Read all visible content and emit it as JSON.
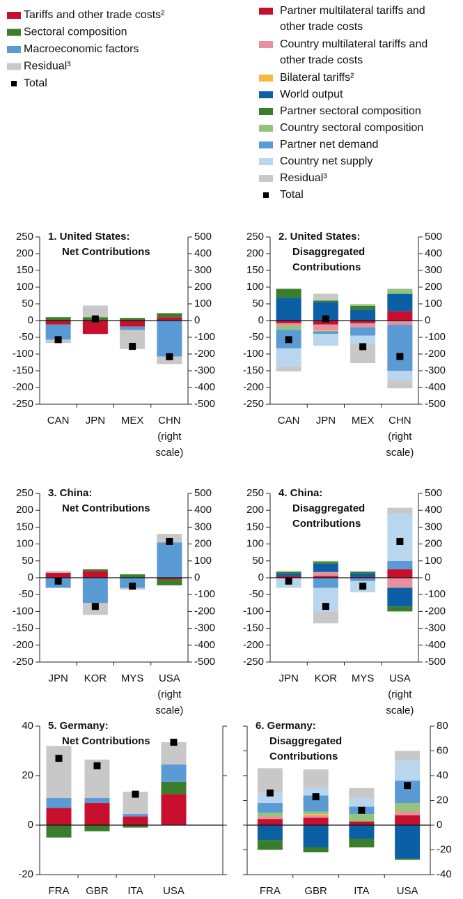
{
  "chart_data": [
    {
      "type": "bar",
      "stacked": true,
      "title": [
        "1. United States:",
        "Net Contributions"
      ],
      "categories": [
        "CAN",
        "JPN",
        "MEX",
        "CHN (right scale)"
      ],
      "ylim": [
        -250,
        250
      ],
      "yticks": [
        250,
        200,
        150,
        100,
        50,
        0,
        -50,
        -100,
        -150,
        -200,
        -250
      ],
      "y2lim": [
        -500,
        500
      ],
      "y2ticks": [
        500,
        400,
        300,
        200,
        100,
        0,
        -100,
        -200,
        -300,
        -400,
        -500
      ],
      "y2_categories": [
        3
      ],
      "series": [
        {
          "name": "Tariffs and other trade costs²",
          "color": "#c8102e",
          "values": [
            -12,
            -40,
            -18,
            20
          ]
        },
        {
          "name": "Sectoral composition",
          "color": "#3a7d2c",
          "values": [
            10,
            10,
            8,
            24
          ]
        },
        {
          "name": "Macroeconomic factors",
          "color": "#5b9bd5",
          "values": [
            -45,
            0,
            -10,
            -215
          ]
        },
        {
          "name": "Residual³",
          "color": "#c8c8c8",
          "values": [
            -10,
            35,
            -57,
            -45
          ]
        },
        {
          "name": "Total",
          "color": "#000000",
          "marker": "square",
          "values": [
            -57,
            5,
            -77,
            -216
          ]
        }
      ]
    },
    {
      "type": "bar",
      "stacked": true,
      "title": [
        "2. United States:",
        "Disaggregated",
        "Contributions"
      ],
      "categories": [
        "CAN",
        "JPN",
        "MEX",
        "CHN (right scale)"
      ],
      "ylim": [
        -250,
        250
      ],
      "yticks": [
        250,
        200,
        150,
        100,
        50,
        0,
        -50,
        -100,
        -150,
        -200,
        -250
      ],
      "y2lim": [
        -500,
        500
      ],
      "y2ticks": [
        500,
        400,
        300,
        200,
        100,
        0,
        -100,
        -200,
        -300,
        -400,
        -500
      ],
      "y2_categories": [
        3
      ],
      "series": [
        {
          "name": "Partner multilateral tariffs and other trade costs",
          "color": "#c8102e",
          "values": [
            -8,
            -12,
            -8,
            55
          ]
        },
        {
          "name": "Country multilateral tariffs and other trade costs",
          "color": "#e8919c",
          "values": [
            -8,
            -17,
            -12,
            -25
          ]
        },
        {
          "name": "Bilateral tariffs²",
          "color": "#f5b942",
          "values": [
            0,
            -3,
            0,
            0
          ]
        },
        {
          "name": "World output",
          "color": "#0b5fa5",
          "values": [
            68,
            55,
            32,
            105
          ]
        },
        {
          "name": "Partner sectoral composition",
          "color": "#3a7d2c",
          "values": [
            27,
            5,
            12,
            0
          ]
        },
        {
          "name": "Country sectoral composition",
          "color": "#93c47d",
          "values": [
            -12,
            0,
            5,
            30
          ]
        },
        {
          "name": "Partner net demand",
          "color": "#5b9bd5",
          "values": [
            -55,
            -8,
            -25,
            -275
          ]
        },
        {
          "name": "Country net supply",
          "color": "#b9d6ef",
          "values": [
            -55,
            -35,
            -25,
            -55
          ]
        },
        {
          "name": "Residual³",
          "color": "#c8c8c8",
          "values": [
            -14,
            20,
            -57,
            -50
          ]
        },
        {
          "name": "Total",
          "color": "#000000",
          "marker": "square",
          "values": [
            -57,
            5,
            -78,
            -215
          ]
        }
      ]
    },
    {
      "type": "bar",
      "stacked": true,
      "title": [
        "3. China:",
        "Net Contributions"
      ],
      "categories": [
        "JPN",
        "KOR",
        "MYS",
        "USA (right scale)"
      ],
      "ylim": [
        -250,
        250
      ],
      "yticks": [
        250,
        200,
        150,
        100,
        50,
        0,
        -50,
        -100,
        -150,
        -200,
        -250
      ],
      "y2lim": [
        -500,
        500
      ],
      "y2ticks": [
        500,
        400,
        300,
        200,
        100,
        0,
        -100,
        -200,
        -300,
        -400,
        -500
      ],
      "y2_categories": [
        3
      ],
      "series": [
        {
          "name": "Tariffs and other trade costs²",
          "color": "#c8102e",
          "values": [
            15,
            20,
            0,
            -10
          ]
        },
        {
          "name": "Sectoral composition",
          "color": "#3a7d2c",
          "values": [
            0,
            5,
            10,
            -35
          ]
        },
        {
          "name": "Macroeconomic factors",
          "color": "#5b9bd5",
          "values": [
            -30,
            -75,
            -30,
            210
          ]
        },
        {
          "name": "Residual³",
          "color": "#c8c8c8",
          "values": [
            5,
            -35,
            -5,
            50
          ]
        },
        {
          "name": "Total",
          "color": "#000000",
          "marker": "square",
          "values": [
            -10,
            -85,
            -25,
            215
          ]
        }
      ]
    },
    {
      "type": "bar",
      "stacked": true,
      "title": [
        "4. China:",
        "Disaggregated",
        "Contributions"
      ],
      "categories": [
        "JPN",
        "KOR",
        "MYS",
        "USA (right scale)"
      ],
      "ylim": [
        -250,
        250
      ],
      "yticks": [
        250,
        200,
        150,
        100,
        50,
        0,
        -50,
        -100,
        -150,
        -200,
        -250
      ],
      "y2lim": [
        -500,
        500
      ],
      "y2ticks": [
        500,
        400,
        300,
        200,
        100,
        0,
        -100,
        -200,
        -300,
        -400,
        -500
      ],
      "y2_categories": [
        3
      ],
      "series": [
        {
          "name": "Partner multilateral tariffs and other trade costs",
          "color": "#c8102e",
          "values": [
            5,
            5,
            3,
            50
          ]
        },
        {
          "name": "Country multilateral tariffs and other trade costs",
          "color": "#e8919c",
          "values": [
            0,
            12,
            0,
            -60
          ]
        },
        {
          "name": "Bilateral tariffs²",
          "color": "#f5b942",
          "values": [
            0,
            0,
            0,
            0
          ]
        },
        {
          "name": "World output",
          "color": "#0b5fa5",
          "values": [
            8,
            25,
            10,
            -110
          ]
        },
        {
          "name": "Partner sectoral composition",
          "color": "#3a7d2c",
          "values": [
            4,
            5,
            5,
            -30
          ]
        },
        {
          "name": "Country sectoral composition",
          "color": "#93c47d",
          "values": [
            3,
            3,
            0,
            0
          ]
        },
        {
          "name": "Partner net demand",
          "color": "#5b9bd5",
          "values": [
            0,
            -30,
            -10,
            50
          ]
        },
        {
          "name": "Country net supply",
          "color": "#b9d6ef",
          "values": [
            -30,
            -70,
            -33,
            280
          ]
        },
        {
          "name": "Residual³",
          "color": "#c8c8c8",
          "values": [
            0,
            -35,
            0,
            35
          ]
        },
        {
          "name": "Total",
          "color": "#000000",
          "marker": "square",
          "values": [
            -10,
            -85,
            -25,
            215
          ]
        }
      ]
    },
    {
      "type": "bar",
      "stacked": true,
      "title": [
        "5. Germany:",
        "Net Contributions"
      ],
      "categories": [
        "FRA",
        "GBR",
        "ITA",
        "USA"
      ],
      "ylim": [
        -20,
        40
      ],
      "yticks": [
        40,
        20,
        0,
        -20
      ],
      "series": [
        {
          "name": "Tariffs and other trade costs²",
          "color": "#c8102e",
          "values": [
            7,
            9,
            3.5,
            12.5
          ]
        },
        {
          "name": "Sectoral composition",
          "color": "#3a7d2c",
          "values": [
            -5,
            -2.5,
            -1,
            5
          ]
        },
        {
          "name": "Macroeconomic factors",
          "color": "#5b9bd5",
          "values": [
            4,
            2,
            1,
            7
          ]
        },
        {
          "name": "Residual³",
          "color": "#c8c8c8",
          "values": [
            21,
            15.5,
            9,
            9
          ]
        },
        {
          "name": "Total",
          "color": "#000000",
          "marker": "square",
          "values": [
            27,
            24,
            12.5,
            33.5
          ]
        }
      ]
    },
    {
      "type": "bar",
      "stacked": true,
      "title": [
        "6. Germany:",
        "Disaggregated",
        "Contributions"
      ],
      "categories": [
        "FRA",
        "GBR",
        "ITA",
        "USA"
      ],
      "y2lim": [
        -40,
        80
      ],
      "y2ticks": [
        80,
        60,
        40,
        20,
        0,
        -20,
        -40
      ],
      "y2_categories": [
        0,
        1,
        2,
        3
      ],
      "series": [
        {
          "name": "Partner multilateral tariffs and other trade costs",
          "color": "#c8102e",
          "values": [
            5,
            6,
            3,
            8
          ]
        },
        {
          "name": "Country multilateral tariffs and other trade costs",
          "color": "#e8919c",
          "values": [
            2,
            2,
            0,
            3
          ]
        },
        {
          "name": "Bilateral tariffs²",
          "color": "#f5b942",
          "values": [
            0,
            1,
            0,
            0
          ]
        },
        {
          "name": "World output",
          "color": "#0b5fa5",
          "values": [
            -12,
            -18,
            -11,
            -27
          ]
        },
        {
          "name": "Partner sectoral composition",
          "color": "#3a7d2c",
          "values": [
            -8,
            -4,
            -7,
            -1
          ]
        },
        {
          "name": "Country sectoral composition",
          "color": "#93c47d",
          "values": [
            3,
            2,
            6,
            7
          ]
        },
        {
          "name": "Partner net demand",
          "color": "#5b9bd5",
          "values": [
            8,
            13,
            6,
            18
          ]
        },
        {
          "name": "Country net supply",
          "color": "#b9d6ef",
          "values": [
            8,
            6,
            7,
            16
          ]
        },
        {
          "name": "Residual³",
          "color": "#c8c8c8",
          "values": [
            20,
            15,
            8,
            8
          ]
        },
        {
          "name": "Total",
          "color": "#000000",
          "marker": "square",
          "values": [
            26,
            23,
            12,
            32
          ]
        }
      ]
    }
  ]
}
